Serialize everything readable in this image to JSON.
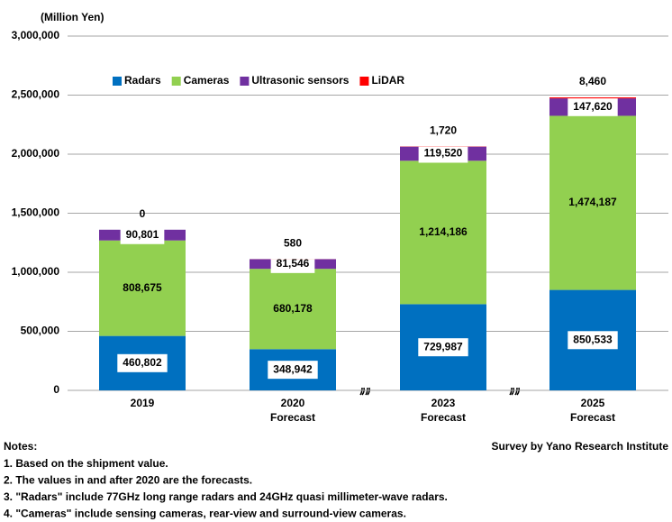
{
  "chart_data": {
    "type": "stacked_bar",
    "y_unit_label": "(Million Yen)",
    "categories": [
      "2019",
      "2020",
      "2023",
      "2025"
    ],
    "category_sublabels": [
      null,
      "Forecast",
      "Forecast",
      "Forecast"
    ],
    "series": [
      {
        "name": "Radars",
        "color": "#0070c0",
        "values": [
          460802,
          348942,
          729987,
          850533
        ],
        "value_labels": [
          "460,802",
          "348,942",
          "729,987",
          "850,533"
        ]
      },
      {
        "name": "Cameras",
        "color": "#92d050",
        "values": [
          808675,
          680178,
          1214186,
          1474187
        ],
        "value_labels": [
          "808,675",
          "680,178",
          "1,214,186",
          "1,474,187"
        ]
      },
      {
        "name": "Ultrasonic sensors",
        "color": "#7030a0",
        "values": [
          90801,
          81546,
          119520,
          147620
        ],
        "value_labels": [
          "90,801",
          "81,546",
          "119,520",
          "147,620"
        ]
      },
      {
        "name": "LiDAR",
        "color": "#ff0000",
        "values": [
          0,
          580,
          1720,
          8460
        ],
        "value_labels": [
          "0",
          "580",
          "1,720",
          "8,460"
        ]
      }
    ],
    "ylim": [
      0,
      3000000
    ],
    "yticks": [
      0,
      {
        "value": 500000,
        "label": "500,000"
      },
      {
        "value": 1000000,
        "label": "1,000,000"
      },
      {
        "value": 1500000,
        "label": "1,500,000"
      },
      {
        "value": 2000000,
        "label": "2,000,000"
      },
      {
        "value": 2500000,
        "label": "2,500,000"
      },
      {
        "value": 3000000,
        "label": "3,000,000"
      }
    ],
    "grid": true,
    "legend_position": "top-left",
    "notes_title": "Notes:",
    "notes": [
      "1. Based on the shipment value.",
      "2. The values in and after 2020 are the forecasts.",
      "3. \"Radars\" include 77GHz long range radars and 24GHz quasi millimeter-wave radars.",
      "4. \"Cameras\" include sensing cameras, rear-view and surround-view cameras."
    ],
    "source": "Survey by Yano Research Institute"
  }
}
